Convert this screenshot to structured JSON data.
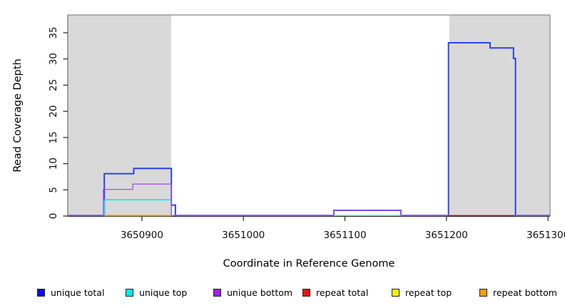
{
  "figure": {
    "x_axis_label": "Coordinate in Reference Genome",
    "y_axis_label": "Read Coverage Depth"
  },
  "legend": {
    "items": [
      {
        "label": "unique total",
        "color": "#0a0af5"
      },
      {
        "label": "unique top",
        "color": "#00eeee"
      },
      {
        "label": "unique bottom",
        "color": "#a020f0"
      },
      {
        "label": "repeat total",
        "color": "#ee1111"
      },
      {
        "label": "repeat top",
        "color": "#f5f500"
      },
      {
        "label": "repeat bottom",
        "color": "#ff9d00"
      }
    ]
  },
  "chart_data": {
    "type": "line",
    "title": "",
    "xlabel": "Coordinate in Reference Genome",
    "ylabel": "Read Coverage Depth",
    "xlim": [
      3650827,
      3651302
    ],
    "ylim": [
      0,
      38.4
    ],
    "x_ticks": [
      3650900,
      3651000,
      3651100,
      3651200,
      3651300
    ],
    "y_ticks": [
      0,
      5,
      10,
      15,
      20,
      25,
      30,
      35
    ],
    "grid": false,
    "legend_position": "bottom",
    "shaded_regions": [
      {
        "name": "repeat-region-left",
        "x0": 3650827,
        "x1": 3650929,
        "color": "#d9d9d9"
      },
      {
        "name": "repeat-region-right",
        "x0": 3651203,
        "x1": 3651302,
        "color": "#d9d9d9"
      }
    ],
    "series": [
      {
        "name": "unique total",
        "color": "#2a42ee",
        "width": 2,
        "opacity": 1,
        "segments": [
          [
            [
              3650827,
              0
            ],
            [
              3650863,
              0
            ],
            [
              3650863,
              8
            ],
            [
              3650892,
              8
            ],
            [
              3650892,
              9
            ],
            [
              3650929,
              9
            ],
            [
              3650929,
              2
            ],
            [
              3650933,
              2
            ],
            [
              3650933,
              0
            ],
            [
              3651089,
              0
            ],
            [
              3651089,
              1
            ],
            [
              3651155,
              1
            ],
            [
              3651155,
              0
            ],
            [
              3651202,
              0
            ],
            [
              3651202,
              33
            ],
            [
              3651243,
              33
            ],
            [
              3651243,
              32
            ],
            [
              3651266,
              32
            ],
            [
              3651266,
              30
            ],
            [
              3651268,
              30
            ],
            [
              3651268,
              0
            ],
            [
              3651302,
              0
            ]
          ]
        ]
      },
      {
        "name": "unique top",
        "color": "#00e8e8",
        "width": 1.5,
        "opacity": 1,
        "segments": [
          [
            [
              3650863,
              0
            ],
            [
              3650863,
              3
            ],
            [
              3650929,
              3
            ],
            [
              3650929,
              0
            ]
          ],
          [
            [
              3651089,
              0
            ],
            [
              3651155,
              0
            ]
          ]
        ]
      },
      {
        "name": "unique bottom",
        "color": "#a751e8",
        "width": 1.3,
        "opacity": 1,
        "segments": [
          [
            [
              3650827,
              0
            ],
            [
              3650862,
              0
            ],
            [
              3650862,
              5
            ],
            [
              3650891,
              5
            ],
            [
              3650891,
              6
            ],
            [
              3650929,
              6
            ],
            [
              3650929,
              0
            ],
            [
              3651089,
              0
            ],
            [
              3651089,
              1
            ],
            [
              3651155,
              1
            ],
            [
              3651155,
              0
            ],
            [
              3651302,
              0
            ]
          ]
        ]
      },
      {
        "name": "repeat total",
        "color": "#ee1111",
        "width": 1.4,
        "opacity": 1,
        "segments": [
          [
            [
              3651202,
              0
            ],
            [
              3651267,
              0
            ]
          ]
        ]
      },
      {
        "name": "repeat top",
        "color": "#f5f500",
        "width": 1.2,
        "opacity": 0.6,
        "segments": [
          [
            [
              3651089,
              0
            ],
            [
              3651155,
              0
            ]
          ]
        ]
      },
      {
        "name": "repeat bottom",
        "color": "#ff9d00",
        "width": 1.8,
        "opacity": 1,
        "segments": [
          [
            [
              3650863,
              0
            ],
            [
              3650929,
              0
            ]
          ]
        ]
      }
    ]
  }
}
